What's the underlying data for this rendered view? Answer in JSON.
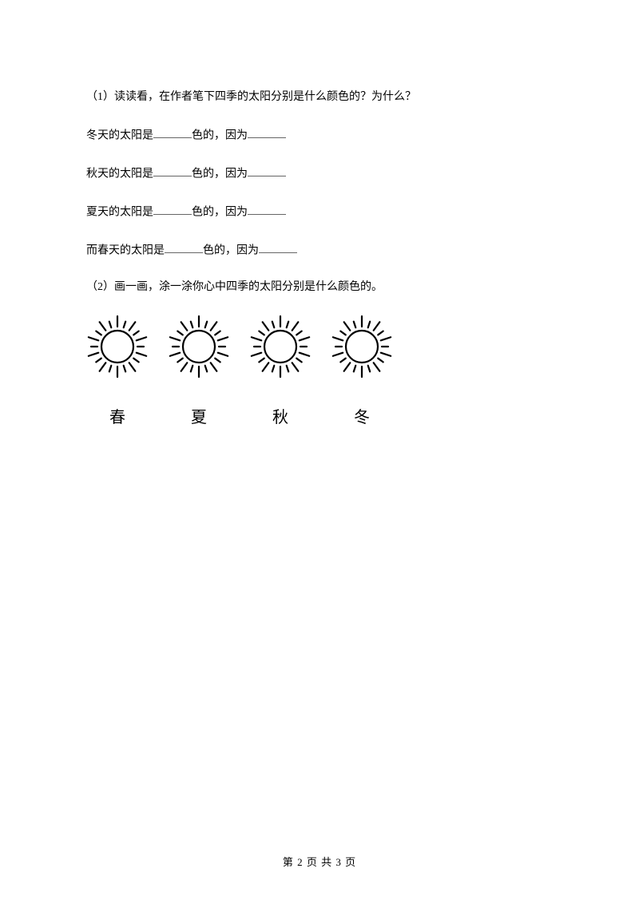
{
  "q1": {
    "prompt": "（1）读读看，在作者笔下四季的太阳分别是什么颜色的？为什么？",
    "rows": [
      {
        "prefix": "冬天的太阳是",
        "mid": "色的，因为"
      },
      {
        "prefix": "秋天的太阳是",
        "mid": "色的，因为"
      },
      {
        "prefix": "夏天的太阳是",
        "mid": "色的，因为"
      },
      {
        "prefix": "而春天的太阳是",
        "mid": "色的，因为"
      }
    ]
  },
  "q2": {
    "prompt": "（2）画一画，涂一涂你心中四季的太阳分别是什么颜色的。",
    "seasons": [
      "春",
      "夏",
      "秋",
      "冬"
    ]
  },
  "sun": {
    "stroke": "#000000",
    "circle_r": 20,
    "circle_stroke_width": 2.2,
    "ray_stroke_width": 2.2,
    "ray_inner": 25,
    "ray_outer_short": 33,
    "ray_outer_long": 38,
    "ray_count": 20
  },
  "footer": {
    "text": "第 2 页 共 3 页"
  }
}
